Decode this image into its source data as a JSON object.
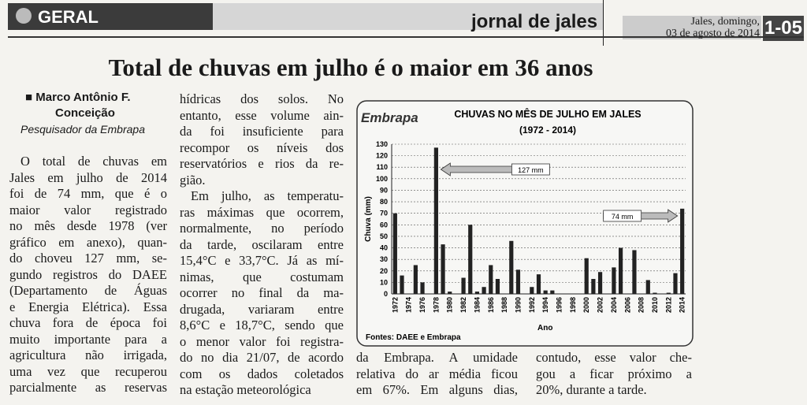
{
  "header": {
    "section": "GERAL",
    "paper": "jornal de jales",
    "date_line1": "Jales, domingo,",
    "date_line2": "03 de agosto de 2014",
    "page": "1-05"
  },
  "article": {
    "headline": "Total de chuvas em julho é o maior em 36 anos",
    "author": [
      "Marco Antônio F.",
      "Conceição"
    ],
    "author_role": "Pesquisador da Embrapa",
    "columns": [
      [
        [
          "O total de chuvas em",
          "Jales em julho de 2014",
          "foi de 74 mm, que é o",
          "maior valor registrado",
          "no mês desde 1978 (ver",
          "gráfico em anexo), quan-",
          "do choveu 127 mm, se-",
          "gundo registros do DAEE",
          "(Departamento de Águas",
          "e Energia Elétrica). Essa",
          "chuva fora de época foi",
          "muito importante para a",
          "agricultura não irrigada,",
          "uma vez que recuperou",
          "parcialmente as reservas"
        ]
      ],
      [
        [
          "hídricas dos solos. No",
          "entanto, esse volume ain-",
          "da foi insuficiente para",
          "recompor os níveis dos",
          "reservatórios e rios da re-",
          "gião."
        ],
        [
          "Em julho, as temperatu-",
          "ras máximas que ocorrem,",
          "normalmente, no período",
          "da tarde, oscilaram entre",
          "15,4°C e 33,7°C. Já as mí-",
          "nimas, que costumam",
          "ocorrer no final da ma-",
          "drugada, variaram entre",
          "8,6°C e 18,7°C, sendo que",
          "o menor valor foi registra-",
          "do no dia 21/07, de acordo",
          "com os dados coletados",
          "na estação meteorológica"
        ]
      ],
      [
        [
          "da Embrapa. A umidade",
          "relativa do ar média ficou",
          "em 67%. Em alguns dias,"
        ]
      ],
      [
        [
          "contudo, esse valor che-",
          "gou a ficar próximo a",
          "20%, durante a tarde."
        ]
      ]
    ]
  },
  "chart": {
    "type": "bar",
    "logo": "Embrapa",
    "title": "CHUVAS NO MÊS DE JULHO EM JALES",
    "subtitle": "(1972 - 2014)",
    "y_label": "Chuva (mm)",
    "x_label": "Ano",
    "source": "Fontes: DAEE e Embrapa",
    "annotations": [
      "127 mm",
      "74 mm"
    ],
    "categories": [
      "1972",
      null,
      "1974",
      null,
      "1976",
      null,
      "1978",
      null,
      "1980",
      null,
      "1982",
      null,
      "1984",
      null,
      "1986",
      null,
      "1988",
      null,
      "1990",
      null,
      "1992",
      null,
      "1994",
      null,
      "1996",
      null,
      "1998",
      null,
      "2000",
      null,
      "2002",
      null,
      "2004",
      null,
      "2006",
      null,
      "2008",
      null,
      "2010",
      null,
      "2012",
      null,
      "2014"
    ],
    "values": [
      70,
      16,
      0,
      25,
      10,
      0,
      127,
      43,
      2,
      0,
      14,
      60,
      2,
      6,
      25,
      13,
      0,
      46,
      21,
      0,
      6,
      17,
      3,
      3,
      0,
      0,
      0,
      0,
      31,
      13,
      19,
      0,
      23,
      40,
      0,
      38,
      0,
      12,
      1,
      0,
      1,
      18,
      74
    ],
    "color": "#222222",
    "ylim": [
      0,
      130
    ],
    "yticks": [
      0,
      10,
      20,
      30,
      40,
      50,
      60,
      70,
      80,
      90,
      100,
      110,
      120,
      130
    ],
    "grid": true
  }
}
